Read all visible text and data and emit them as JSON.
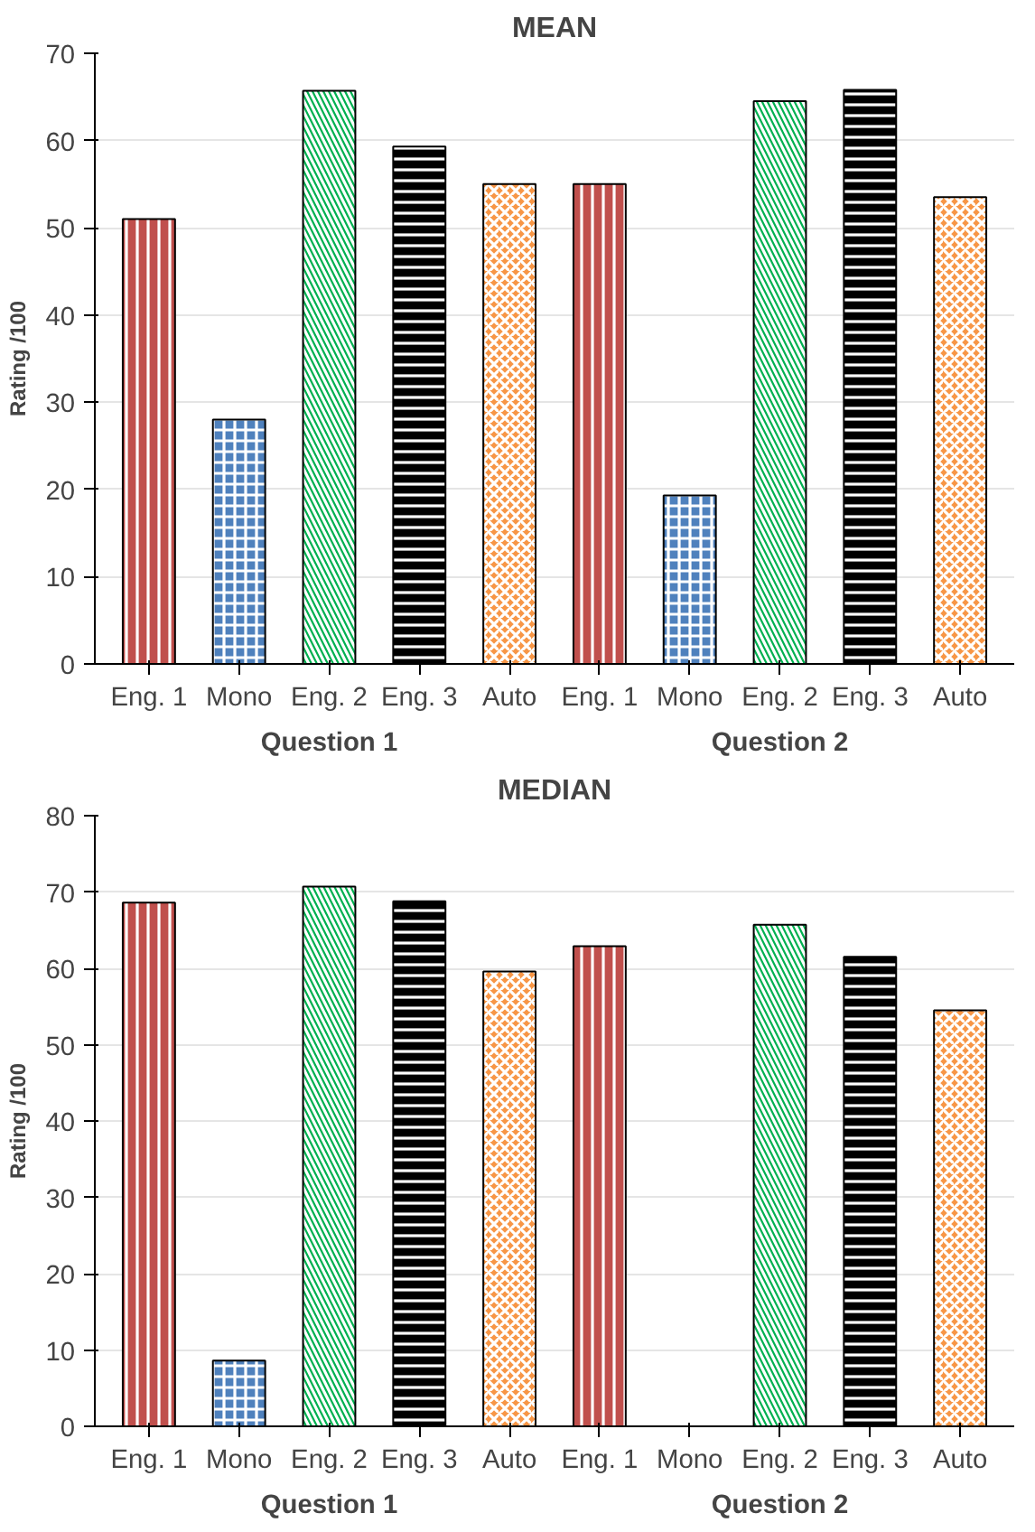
{
  "chart_data": [
    {
      "type": "bar",
      "title": "MEAN",
      "ylabel": "Rating /100",
      "categories": [
        "Eng. 1",
        "Mono",
        "Eng. 2",
        "Eng. 3",
        "Auto",
        "Eng. 1",
        "Mono",
        "Eng. 2",
        "Eng. 3",
        "Auto"
      ],
      "values": [
        51,
        28,
        65.7,
        59.3,
        55,
        55,
        19.3,
        64.5,
        65.8,
        53.5
      ],
      "colors": [
        "#c0504d",
        "#4f81bd",
        "#00b050",
        "#000000",
        "#f79646",
        "#c0504d",
        "#4f81bd",
        "#00b050",
        "#000000",
        "#f79646"
      ],
      "annotations": [
        "Question 1",
        "Question 2"
      ],
      "ylim": [
        0,
        70
      ],
      "yticks": [
        0,
        10,
        20,
        30,
        40,
        50,
        60,
        70
      ],
      "grid": "y"
    },
    {
      "type": "bar",
      "title": "MEDIAN",
      "ylabel": "Rating /100",
      "categories": [
        "Eng. 1",
        "Mono",
        "Eng. 2",
        "Eng. 3",
        "Auto",
        "Eng. 1",
        "Mono",
        "Eng. 2",
        "Eng. 3",
        "Auto"
      ],
      "values": [
        68.6,
        8.6,
        70.7,
        68.8,
        59.6,
        62.9,
        0,
        65.7,
        61.5,
        54.5
      ],
      "colors": [
        "#c0504d",
        "#4f81bd",
        "#00b050",
        "#000000",
        "#f79646",
        "#c0504d",
        "#4f81bd",
        "#00b050",
        "#000000",
        "#f79646"
      ],
      "annotations": [
        "Question 1",
        "Question 2"
      ],
      "ylim": [
        0,
        80
      ],
      "yticks": [
        0,
        10,
        20,
        30,
        40,
        50,
        60,
        70,
        80
      ],
      "grid": "y"
    }
  ]
}
